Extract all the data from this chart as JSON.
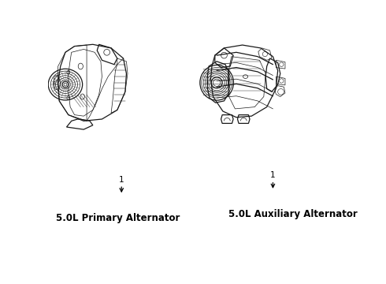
{
  "background_color": "#ffffff",
  "label_left_number": "1",
  "label_left_text": "5.0L Primary Alternator",
  "label_right_number": "1",
  "label_right_text": "5.0L Auxiliary Alternator",
  "label_fontsize": 8.5,
  "number_fontsize": 7.5,
  "line_color": "#1a1a1a",
  "text_color": "#000000",
  "lw_main": 0.9,
  "lw_thin": 0.5,
  "lw_thick": 1.1
}
